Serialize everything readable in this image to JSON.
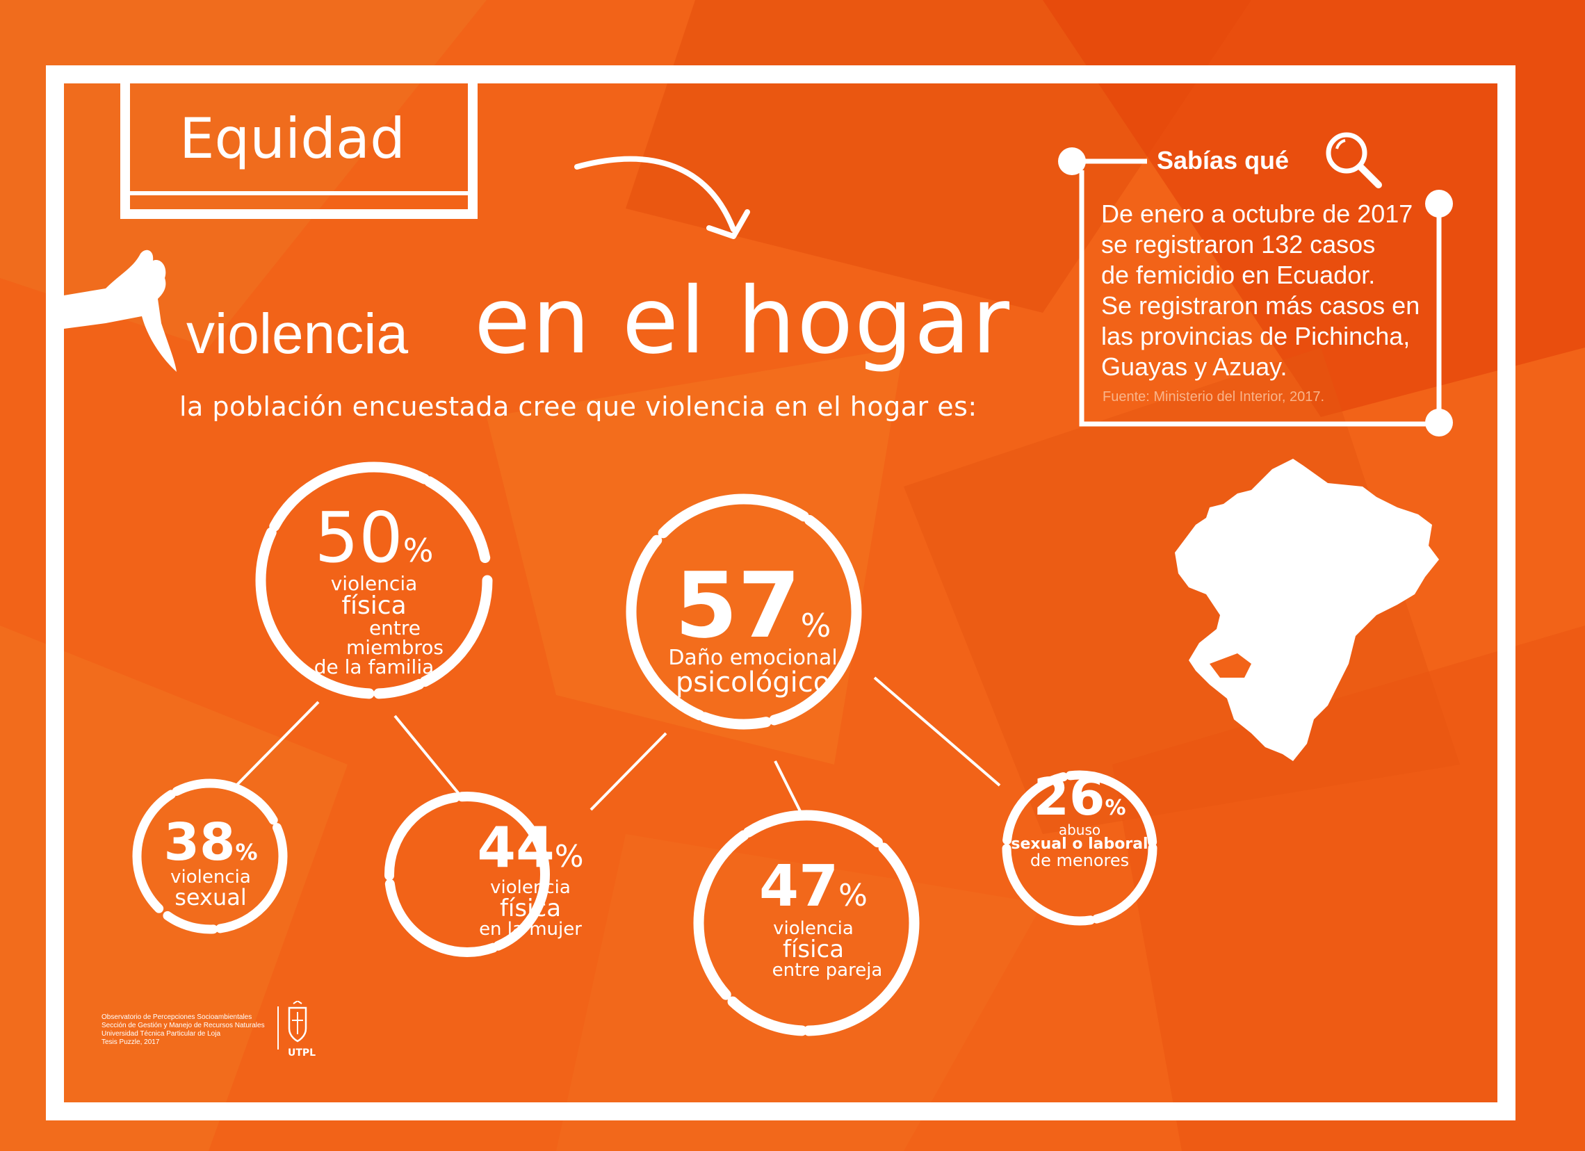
{
  "header": {
    "title": "Equidad"
  },
  "headline": {
    "part1": "violencia",
    "part2": "en el hogar"
  },
  "subtitle": "la población encuestada cree que violencia en el  hogar es:",
  "sabias": {
    "title": "Sabías qué",
    "lines": [
      "De enero a octubre de 2017",
      "se registraron 132 casos",
      "de femicidio en Ecuador.",
      "Se registraron más casos en",
      "las provincias de Pichincha,",
      "Guayas y Azuay."
    ],
    "source": "Fuente: Ministerio del Interior, 2017."
  },
  "stats": [
    {
      "value": "50",
      "unit": "%",
      "l1": "violencia",
      "l2": "física",
      "l3": "entre miembros",
      "l4": "de la familia"
    },
    {
      "value": "57",
      "unit": "%",
      "l1": "Daño emocional",
      "l2": "psicológico"
    },
    {
      "value": "38",
      "unit": "%",
      "l1": "violencia",
      "l2": "sexual"
    },
    {
      "value": "44",
      "unit": "%",
      "l1": "violencia",
      "l2": "física",
      "l3": "en la mujer"
    },
    {
      "value": "47",
      "unit": "%",
      "l1": "violencia",
      "l2": "física",
      "l3": "entre pareja"
    },
    {
      "value": "26",
      "unit": "%",
      "l1": "abuso",
      "l2": "sexual o laboral",
      "l3": "de menores"
    }
  ],
  "footer": {
    "lines": [
      "Observatorio de Percepciones Socioambientales",
      "Sección de Gestión y Manejo de Recursos Naturales",
      "Universidad Técnica Particular de Loja",
      "Tesis Puzzle, 2017"
    ],
    "logo": "UTPL"
  },
  "colors": {
    "background": "#f26318",
    "foreground": "#ffffff"
  }
}
